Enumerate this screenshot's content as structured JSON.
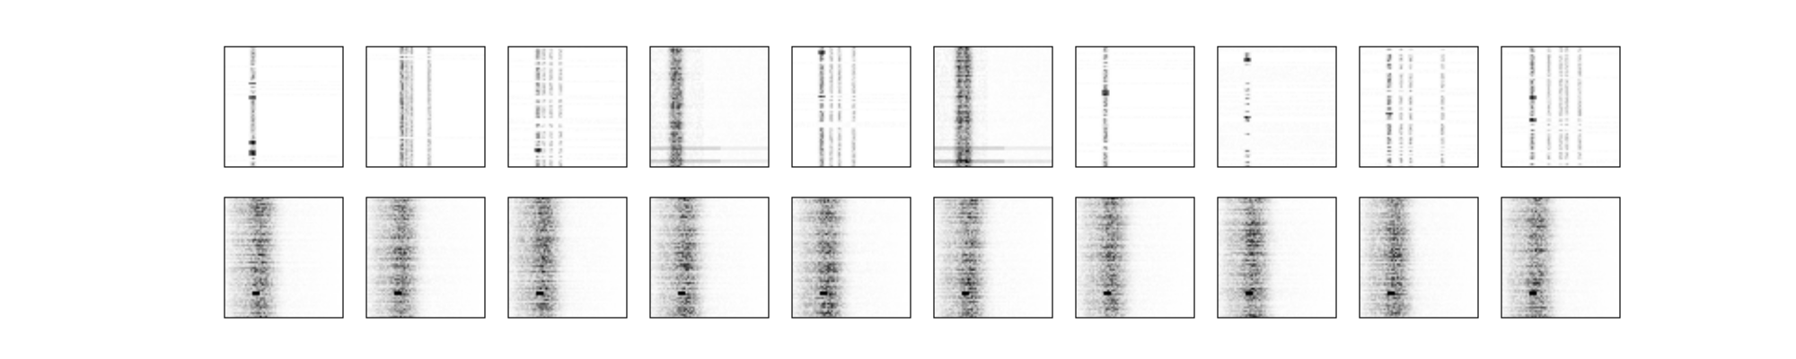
{
  "chart_data": {
    "type": "heatmap",
    "title": "",
    "xlabel": "",
    "ylabel": "",
    "axes_ticks": "none",
    "colormap": "Greys",
    "value_range": [
      0,
      1
    ],
    "layout": {
      "rows": 2,
      "cols": 10
    },
    "rows": [
      {
        "name": "top",
        "panels": [
          {
            "index": 1,
            "pattern": "columns",
            "column_centers": [
              0.24
            ],
            "density": 0.85,
            "intensity": 0.55,
            "bright_rows": [
              0.3,
              0.42,
              0.8,
              0.88
            ]
          },
          {
            "index": 2,
            "pattern": "columns",
            "column_centers": [
              0.3,
              0.34,
              0.38,
              0.53
            ],
            "density": 0.95,
            "intensity": 0.7,
            "bright_rows": []
          },
          {
            "index": 3,
            "pattern": "columns",
            "column_centers": [
              0.25,
              0.3,
              0.36,
              0.44
            ],
            "density": 0.8,
            "intensity": 0.6,
            "bright_rows": [
              0.62,
              0.85
            ]
          },
          {
            "index": 4,
            "pattern": "band",
            "column_centers": [
              0.2,
              0.24
            ],
            "density": 0.7,
            "intensity": 0.75,
            "bright_rows": [
              0.85,
              0.96
            ]
          },
          {
            "index": 5,
            "pattern": "columns",
            "column_centers": [
              0.25,
              0.33,
              0.4,
              0.52
            ],
            "density": 0.8,
            "intensity": 0.65,
            "bright_rows": [
              0.05,
              0.42
            ]
          },
          {
            "index": 6,
            "pattern": "band",
            "column_centers": [
              0.22,
              0.28
            ],
            "density": 0.75,
            "intensity": 0.8,
            "bright_rows": [
              0.85,
              0.95
            ]
          },
          {
            "index": 7,
            "pattern": "columns",
            "column_centers": [
              0.25
            ],
            "density": 0.8,
            "intensity": 0.6,
            "bright_rows": [
              0.38
            ]
          },
          {
            "index": 8,
            "pattern": "columns",
            "column_centers": [
              0.25
            ],
            "density": 0.4,
            "intensity": 0.65,
            "bright_rows": [
              0.12,
              0.22,
              0.58
            ]
          },
          {
            "index": 9,
            "pattern": "columns",
            "column_centers": [
              0.25,
              0.35,
              0.43,
              0.7
            ],
            "density": 0.75,
            "intensity": 0.7,
            "bright_rows": [
              0.05,
              0.55
            ]
          },
          {
            "index": 10,
            "pattern": "columns",
            "column_centers": [
              0.26,
              0.4,
              0.5,
              0.55,
              0.66
            ],
            "density": 0.8,
            "intensity": 0.6,
            "bright_rows": [
              0.42,
              0.62
            ]
          }
        ]
      },
      {
        "name": "bottom",
        "panels": [
          {
            "index": 1,
            "pattern": "cloud",
            "column_centers": [
              0.3
            ],
            "density": 1.0,
            "intensity": 0.7,
            "bright_rows": [
              0.8
            ]
          },
          {
            "index": 2,
            "pattern": "cloud",
            "column_centers": [
              0.3
            ],
            "density": 1.0,
            "intensity": 0.7,
            "bright_rows": [
              0.8
            ]
          },
          {
            "index": 3,
            "pattern": "cloud",
            "column_centers": [
              0.3
            ],
            "density": 1.0,
            "intensity": 0.7,
            "bright_rows": [
              0.8
            ]
          },
          {
            "index": 4,
            "pattern": "cloud",
            "column_centers": [
              0.3
            ],
            "density": 1.0,
            "intensity": 0.7,
            "bright_rows": [
              0.8
            ]
          },
          {
            "index": 5,
            "pattern": "cloud",
            "column_centers": [
              0.3
            ],
            "density": 1.0,
            "intensity": 0.7,
            "bright_rows": [
              0.8
            ]
          },
          {
            "index": 6,
            "pattern": "cloud",
            "column_centers": [
              0.3
            ],
            "density": 1.0,
            "intensity": 0.7,
            "bright_rows": [
              0.8
            ]
          },
          {
            "index": 7,
            "pattern": "cloud",
            "column_centers": [
              0.3
            ],
            "density": 1.0,
            "intensity": 0.7,
            "bright_rows": [
              0.8
            ]
          },
          {
            "index": 8,
            "pattern": "cloud",
            "column_centers": [
              0.3
            ],
            "density": 1.0,
            "intensity": 0.7,
            "bright_rows": [
              0.8
            ]
          },
          {
            "index": 9,
            "pattern": "cloud",
            "column_centers": [
              0.3
            ],
            "density": 1.0,
            "intensity": 0.7,
            "bright_rows": [
              0.8
            ]
          },
          {
            "index": 10,
            "pattern": "cloud",
            "column_centers": [
              0.3
            ],
            "density": 1.0,
            "intensity": 0.7,
            "bright_rows": [
              0.8
            ]
          }
        ]
      }
    ]
  }
}
